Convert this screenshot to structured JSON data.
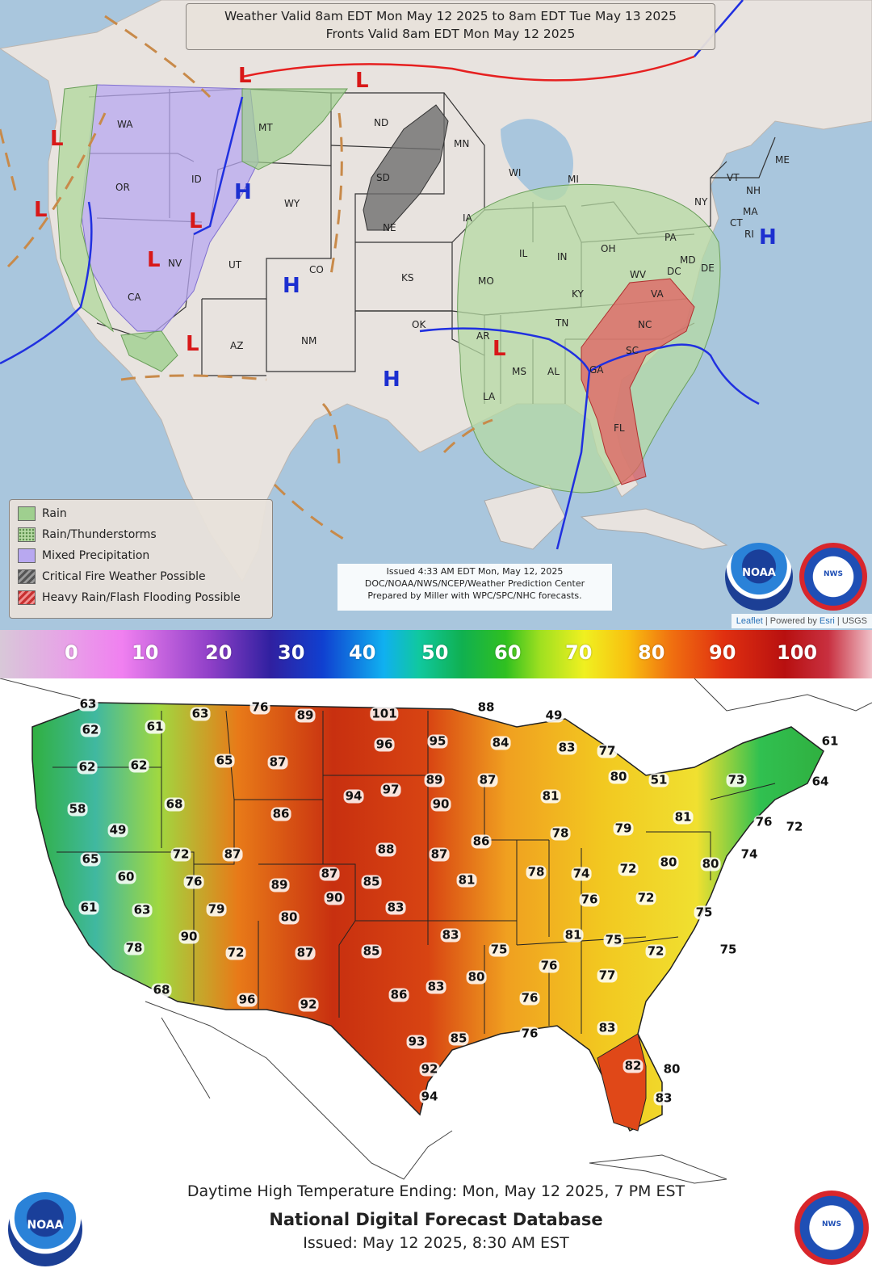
{
  "weather_map": {
    "header_line1": "Weather Valid 8am EDT Mon May 12 2025 to 8am EDT Tue May 13 2025",
    "header_line2": "Fronts Valid 8am EDT Mon May 12 2025",
    "legend": [
      {
        "label": "Rain",
        "color": "#9fcf8f"
      },
      {
        "label": "Rain/Thunderstorms",
        "color": "#b6d9a3"
      },
      {
        "label": "Mixed Precipitation",
        "color": "#b8a8f0"
      },
      {
        "label": "Critical Fire Weather Possible",
        "color": "#6e6e6e"
      },
      {
        "label": "Heavy Rain/Flash Flooding Possible",
        "color": "#e06060"
      }
    ],
    "issued_line1": "Issued  4:33 AM EDT  Mon, May 12, 2025",
    "issued_line2": "DOC/NOAA/NWS/NCEP/Weather Prediction Center",
    "issued_line3": "Prepared by Miller with WPC/SPC/NHC forecasts.",
    "attribution": {
      "leaflet": "Leaflet",
      "sep1": " | Powered by ",
      "esri": "Esri",
      "sep2": " | USGS"
    },
    "state_labels": [
      "WA",
      "OR",
      "ID",
      "CA",
      "NV",
      "MT",
      "WY",
      "UT",
      "AZ",
      "CO",
      "NM",
      "ND",
      "SD",
      "NE",
      "KS",
      "OK",
      "MN",
      "IA",
      "MO",
      "AR",
      "LA",
      "WI",
      "IL",
      "MS",
      "AL",
      "TN",
      "KY",
      "IN",
      "MI",
      "OH",
      "GA",
      "FL",
      "SC",
      "NC",
      "VA",
      "WV",
      "PA",
      "NY",
      "ME",
      "VT",
      "NH",
      "MA",
      "CT",
      "RI",
      "MD",
      "DE",
      "DC"
    ],
    "pressure_high": "H",
    "pressure_low": "L"
  },
  "color_scale": {
    "ticks": [
      "0",
      "10",
      "20",
      "30",
      "40",
      "50",
      "60",
      "70",
      "80",
      "90",
      "100"
    ]
  },
  "temperature_map": {
    "values": [
      "63",
      "63",
      "76",
      "89",
      "101",
      "88",
      "62",
      "61",
      "49",
      "96",
      "95",
      "84",
      "83",
      "77",
      "62",
      "62",
      "65",
      "87",
      "89",
      "87",
      "80",
      "51",
      "73",
      "61",
      "68",
      "94",
      "97",
      "90",
      "81",
      "64",
      "58",
      "86",
      "81",
      "49",
      "76",
      "72",
      "88",
      "87",
      "86",
      "78",
      "79",
      "65",
      "72",
      "87",
      "87",
      "85",
      "81",
      "78",
      "74",
      "72",
      "80",
      "80",
      "74",
      "60",
      "76",
      "89",
      "90",
      "83",
      "76",
      "72",
      "61",
      "63",
      "79",
      "80",
      "75",
      "90",
      "83",
      "81",
      "75",
      "78",
      "72",
      "87",
      "85",
      "75",
      "72",
      "75",
      "68",
      "83",
      "80",
      "76",
      "77",
      "96",
      "92",
      "86",
      "76",
      "76",
      "83",
      "93",
      "85",
      "82",
      "92",
      "80",
      "94",
      "83"
    ],
    "caption_line1": "Daytime High Temperature Ending: Mon, May 12 2025, 7 PM EST",
    "caption_line2": "National Digital Forecast Database",
    "caption_line3": "Issued: May 12 2025, 8:30 AM EST"
  },
  "logos": {
    "noaa": "NOAA",
    "nws": "NWS"
  }
}
